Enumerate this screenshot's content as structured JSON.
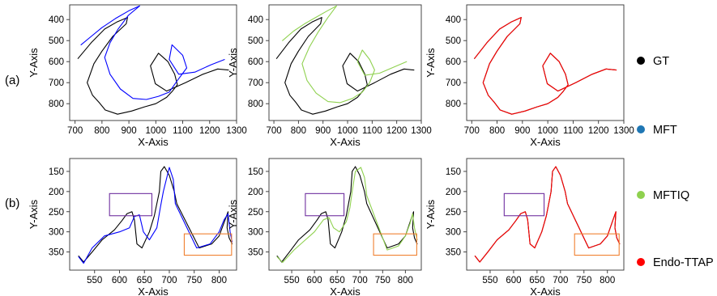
{
  "legend": [
    {
      "label": "GT",
      "color": "#000000"
    },
    {
      "label": "MFT",
      "color": "#1f77b4"
    },
    {
      "label": "MFTIQ",
      "color": "#8fd14f"
    },
    {
      "label": "Endo-TTAP",
      "color": "#ff0000"
    }
  ],
  "chart_data": [
    {
      "type": "line",
      "row": "(a)",
      "xlabel": "X-Axis",
      "ylabel": "Y-Axis",
      "xlim": [
        680,
        1300
      ],
      "ylim": [
        880,
        330
      ],
      "y_inverted": true,
      "xticks": [
        700,
        800,
        900,
        1000,
        1100,
        1200,
        1300
      ],
      "yticks": [
        400,
        500,
        600,
        700,
        800
      ],
      "grid": false,
      "series": [
        {
          "name": "GT",
          "color": "#000000",
          "x": [
            711,
            760,
            810,
            855,
            895,
            890,
            840,
            800,
            770,
            745,
            765,
            790,
            812,
            858,
            910,
            958,
            1000,
            1040,
            1062,
            1080,
            1070,
            1045,
            1010,
            980,
            998,
            1040,
            1110,
            1175,
            1230,
            1270
          ],
          "y": [
            585,
            510,
            445,
            412,
            390,
            420,
            480,
            550,
            610,
            700,
            760,
            795,
            830,
            850,
            835,
            815,
            800,
            770,
            740,
            710,
            660,
            600,
            560,
            620,
            705,
            740,
            700,
            660,
            635,
            640
          ]
        },
        {
          "name": "MFT",
          "color": "#0000ff",
          "x": [
            722,
            760,
            800,
            850,
            900,
            940,
            898,
            860,
            830,
            810,
            830,
            868,
            915,
            965,
            1010,
            1050,
            1080,
            1115,
            1100,
            1060,
            1050,
            1085,
            1145,
            1205,
            1255
          ],
          "y": [
            520,
            480,
            438,
            395,
            358,
            335,
            380,
            445,
            510,
            580,
            660,
            730,
            775,
            780,
            765,
            745,
            690,
            630,
            570,
            520,
            590,
            660,
            650,
            615,
            590
          ]
        },
        {
          "name": "MFTIQ",
          "color": "#8fd14f",
          "x": [
            735,
            780,
            825,
            870,
            915,
            955,
            920,
            880,
            845,
            815,
            835,
            872,
            920,
            970,
            1020,
            1060,
            1090,
            1110,
            1090,
            1060,
            1040,
            1070,
            1130,
            1190,
            1240
          ],
          "y": [
            500,
            455,
            420,
            390,
            360,
            335,
            390,
            460,
            530,
            610,
            690,
            750,
            790,
            795,
            775,
            745,
            700,
            640,
            590,
            545,
            600,
            665,
            655,
            625,
            600
          ]
        },
        {
          "name": "Endo-TTAP",
          "color": "#ff0000",
          "x": [
            711,
            760,
            810,
            855,
            895,
            890,
            840,
            800,
            770,
            745,
            765,
            790,
            812,
            858,
            910,
            958,
            1000,
            1040,
            1062,
            1080,
            1070,
            1045,
            1010,
            980,
            998,
            1040,
            1110,
            1175,
            1230,
            1270
          ],
          "y": [
            585,
            510,
            445,
            412,
            390,
            420,
            480,
            550,
            610,
            700,
            760,
            795,
            830,
            850,
            835,
            815,
            800,
            770,
            740,
            710,
            660,
            600,
            560,
            620,
            705,
            740,
            700,
            660,
            635,
            640
          ]
        }
      ]
    },
    {
      "type": "line",
      "row": "(b)",
      "xlabel": "X-Axis",
      "ylabel": "Y-Axis",
      "xlim": [
        500,
        835
      ],
      "ylim": [
        395,
        118
      ],
      "y_inverted": true,
      "xticks": [
        550,
        600,
        650,
        700,
        750,
        800
      ],
      "yticks": [
        150,
        200,
        250,
        300,
        350
      ],
      "grid": false,
      "series": [
        {
          "name": "GT",
          "color": "#000000",
          "x": [
            518,
            528,
            545,
            565,
            590,
            605,
            615,
            625,
            630,
            635,
            645,
            660,
            670,
            675,
            680,
            683,
            690,
            700,
            710,
            715,
            760,
            785,
            800,
            812,
            818,
            816,
            820,
            826
          ],
          "y": [
            360,
            375,
            350,
            320,
            295,
            272,
            255,
            250,
            270,
            330,
            340,
            300,
            260,
            230,
            200,
            150,
            138,
            160,
            200,
            230,
            340,
            330,
            310,
            270,
            250,
            290,
            315,
            330
          ]
        },
        {
          "name": "MFT",
          "color": "#0000ff",
          "x": [
            518,
            528,
            545,
            570,
            600,
            620,
            630,
            640,
            648,
            660,
            675,
            682,
            688,
            700,
            708,
            712,
            755,
            782,
            800,
            810,
            818,
            822,
            826
          ],
          "y": [
            362,
            378,
            340,
            310,
            300,
            290,
            262,
            258,
            300,
            320,
            290,
            240,
            200,
            140,
            170,
            230,
            340,
            330,
            300,
            270,
            255,
            300,
            325
          ]
        },
        {
          "name": "MFTIQ",
          "color": "#8fd14f",
          "x": [
            518,
            530,
            555,
            580,
            600,
            620,
            632,
            642,
            655,
            670,
            678,
            683,
            690,
            702,
            710,
            715,
            760,
            785,
            800,
            810,
            816,
            820,
            826
          ],
          "y": [
            362,
            376,
            345,
            320,
            300,
            270,
            265,
            290,
            300,
            275,
            240,
            200,
            150,
            140,
            165,
            210,
            345,
            335,
            310,
            280,
            255,
            290,
            320
          ]
        },
        {
          "name": "Endo-TTAP",
          "color": "#ff0000",
          "x": [
            518,
            528,
            545,
            565,
            590,
            605,
            615,
            625,
            630,
            635,
            645,
            660,
            670,
            675,
            680,
            683,
            690,
            700,
            710,
            715,
            760,
            785,
            800,
            812,
            818,
            816,
            820,
            826
          ],
          "y": [
            360,
            375,
            350,
            320,
            295,
            272,
            255,
            250,
            270,
            330,
            340,
            300,
            260,
            230,
            200,
            150,
            138,
            160,
            200,
            230,
            340,
            330,
            310,
            270,
            250,
            290,
            315,
            330
          ]
        }
      ],
      "boxes": [
        {
          "color": "#7030a0",
          "x": [
            580,
            665
          ],
          "y": [
            205,
            260
          ]
        },
        {
          "color": "#f08030",
          "x": [
            730,
            825
          ],
          "y": [
            305,
            358
          ]
        }
      ]
    }
  ]
}
